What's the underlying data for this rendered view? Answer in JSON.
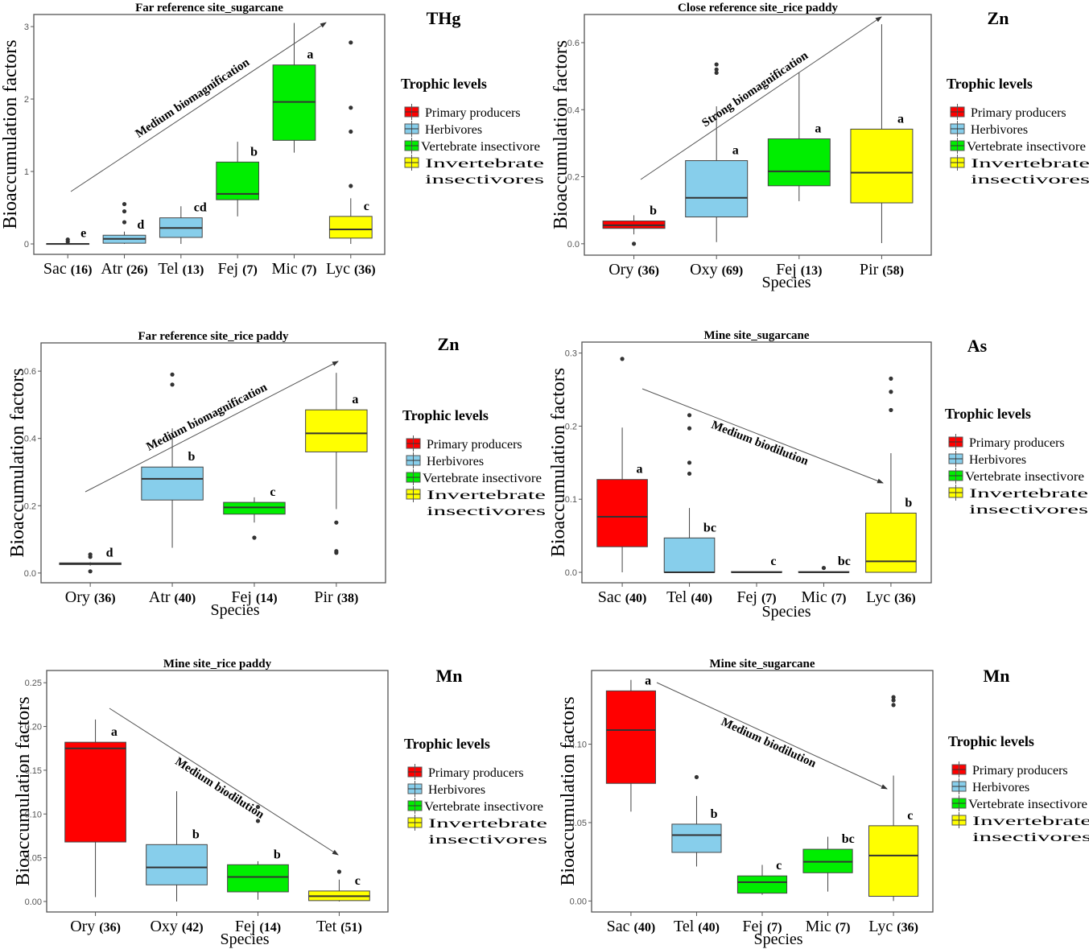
{
  "chart_data": [
    {
      "type": "box",
      "title": "Far reference site_sugarcane",
      "element": "THg",
      "ylabel": "Bioaccumulation factors",
      "xlabel": "",
      "ylim": [
        -0.144,
        3.167
      ],
      "yticks": [
        0,
        1,
        2,
        3
      ],
      "ytick_labels": [
        "0",
        "1",
        "2",
        "3"
      ],
      "trend": "Medium biomagnification",
      "trend_direction": "up",
      "boxes": [
        {
          "species": "Sac",
          "n": "(16)",
          "group": "Primary producers",
          "stats": [
            0,
            0,
            0,
            0.005,
            0.01
          ],
          "outliers": [
            0.03,
            0.06
          ],
          "letter": "e"
        },
        {
          "species": "Atr",
          "n": "(26)",
          "group": "Herbivores",
          "stats": [
            0,
            0.01,
            0.07,
            0.12,
            0.17
          ],
          "outliers": [
            0.3,
            0.45,
            0.55
          ],
          "letter": "d"
        },
        {
          "species": "Tel",
          "n": "(13)",
          "group": "Herbivores",
          "stats": [
            0,
            0.09,
            0.22,
            0.36,
            0.52
          ],
          "outliers": [],
          "letter": "cd"
        },
        {
          "species": "Fej",
          "n": "(7)",
          "group": "Vertebrate insectivore",
          "stats": [
            0.38,
            0.61,
            0.69,
            1.13,
            1.41
          ],
          "outliers": [],
          "letter": "b"
        },
        {
          "species": "Mic",
          "n": "(7)",
          "group": "Vertebrate insectivore",
          "stats": [
            1.26,
            1.43,
            1.96,
            2.47,
            3.05
          ],
          "outliers": [],
          "letter": "a"
        },
        {
          "species": "Lyc",
          "n": "(36)",
          "group": "Invertebrate insectivores",
          "stats": [
            0,
            0.08,
            0.2,
            0.38,
            0.63
          ],
          "outliers": [
            0.8,
            1.55,
            1.88,
            2.78
          ],
          "letter": "c"
        }
      ]
    },
    {
      "type": "box",
      "title": "Close reference site_rice paddy",
      "element": "Zn",
      "ylabel": "Bioaccumulation factors",
      "xlabel": "Species",
      "ylim": [
        -0.034,
        0.684
      ],
      "yticks": [
        0,
        0.2,
        0.4,
        0.6
      ],
      "ytick_labels": [
        "0.0",
        "0.2",
        "0.4",
        "0.6"
      ],
      "trend": "Strong biomagnification",
      "trend_direction": "up",
      "boxes": [
        {
          "species": "Ory",
          "n": "(36)",
          "group": "Primary producers",
          "stats": [
            0.028,
            0.046,
            0.055,
            0.068,
            0.085
          ],
          "outliers": [
            0
          ],
          "letter": "b"
        },
        {
          "species": "Oxy",
          "n": "(69)",
          "group": "Herbivores",
          "stats": [
            0.005,
            0.08,
            0.137,
            0.248,
            0.41
          ],
          "outliers": [
            0.51,
            0.52,
            0.535
          ],
          "letter": "a"
        },
        {
          "species": "Fej",
          "n": "(13)",
          "group": "Vertebrate insectivore",
          "stats": [
            0.127,
            0.173,
            0.216,
            0.313,
            0.51
          ],
          "outliers": [],
          "letter": "a"
        },
        {
          "species": "Pir",
          "n": "(58)",
          "group": "Invertebrate insectivores",
          "stats": [
            0.002,
            0.122,
            0.212,
            0.342,
            0.655
          ],
          "outliers": [],
          "letter": "a"
        }
      ]
    },
    {
      "type": "box",
      "title": "Far reference site_rice paddy",
      "element": "Zn",
      "ylabel": "Bioaccumulation factors",
      "xlabel": "Species",
      "ylim": [
        -0.029,
        0.684
      ],
      "yticks": [
        0,
        0.2,
        0.4,
        0.6
      ],
      "ytick_labels": [
        "0.0",
        "0.2",
        "0.4",
        "0.6"
      ],
      "trend": "Medium biomagnification",
      "trend_direction": "up",
      "boxes": [
        {
          "species": "Ory",
          "n": "(36)",
          "group": "Primary producers",
          "stats": [
            0.022,
            0.025,
            0.028,
            0.03,
            0.032
          ],
          "outliers": [
            0.005,
            0.048,
            0.055
          ],
          "letter": "d"
        },
        {
          "species": "Atr",
          "n": "(40)",
          "group": "Herbivores",
          "stats": [
            0.075,
            0.217,
            0.28,
            0.315,
            0.43
          ],
          "outliers": [
            0.56,
            0.59
          ],
          "letter": "b"
        },
        {
          "species": "Fej",
          "n": "(14)",
          "group": "Vertebrate insectivore",
          "stats": [
            0.15,
            0.175,
            0.195,
            0.21,
            0.225
          ],
          "outliers": [
            0.105
          ],
          "letter": "c"
        },
        {
          "species": "Pir",
          "n": "(38)",
          "group": "Invertebrate insectivores",
          "stats": [
            0.19,
            0.36,
            0.415,
            0.485,
            0.595
          ],
          "outliers": [
            0.06,
            0.065,
            0.15
          ],
          "letter": "a"
        }
      ]
    },
    {
      "type": "box",
      "title": "Mine site_sugarcane",
      "element": "As",
      "ylabel": "Bioaccumulation factors",
      "xlabel": "Species",
      "ylim": [
        -0.0143,
        0.315
      ],
      "yticks": [
        0,
        0.1,
        0.2,
        0.3
      ],
      "ytick_labels": [
        "0.0",
        "0.1",
        "0.2",
        "0.3"
      ],
      "trend": "Medium biodilution",
      "trend_direction": "down",
      "boxes": [
        {
          "species": "Sac",
          "n": "(40)",
          "group": "Primary producers",
          "stats": [
            0,
            0.035,
            0.076,
            0.127,
            0.198
          ],
          "outliers": [
            0.292
          ],
          "letter": "a"
        },
        {
          "species": "Tel",
          "n": "(40)",
          "group": "Herbivores",
          "stats": [
            0,
            0,
            0,
            0.047,
            0.088
          ],
          "outliers": [
            0.135,
            0.15,
            0.197,
            0.215
          ],
          "letter": "bc"
        },
        {
          "species": "Fej",
          "n": "(7)",
          "group": "Vertebrate insectivore",
          "stats": [
            0,
            0,
            0,
            0.001,
            0.001
          ],
          "outliers": [],
          "letter": "c"
        },
        {
          "species": "Mic",
          "n": "(7)",
          "group": "Vertebrate insectivore",
          "stats": [
            0,
            0,
            0,
            0.001,
            0.001
          ],
          "outliers": [
            0.006
          ],
          "letter": "bc"
        },
        {
          "species": "Lyc",
          "n": "(36)",
          "group": "Invertebrate insectivores",
          "stats": [
            0,
            0,
            0.015,
            0.081,
            0.163
          ],
          "outliers": [
            0.222,
            0.247,
            0.265
          ],
          "letter": "b"
        }
      ]
    },
    {
      "type": "box",
      "title": "Mine site_rice paddy",
      "element": "Mn",
      "ylabel": "Bioaccumulation factors",
      "xlabel": "Species",
      "ylim": [
        -0.012,
        0.264
      ],
      "yticks": [
        0,
        0.05,
        0.1,
        0.15,
        0.2,
        0.25
      ],
      "ytick_labels": [
        "0.00",
        "0.05",
        "0.10",
        "0.15",
        "0.20",
        "0.25"
      ],
      "trend": "Medium biodilution",
      "trend_direction": "down",
      "boxes": [
        {
          "species": "Ory",
          "n": "(36)",
          "group": "Primary producers",
          "stats": [
            0.005,
            0.068,
            0.175,
            0.182,
            0.208
          ],
          "outliers": [],
          "letter": "a"
        },
        {
          "species": "Oxy",
          "n": "(42)",
          "group": "Herbivores",
          "stats": [
            0,
            0.019,
            0.039,
            0.065,
            0.126
          ],
          "outliers": [],
          "letter": "b"
        },
        {
          "species": "Fej",
          "n": "(14)",
          "group": "Vertebrate insectivore",
          "stats": [
            0.002,
            0.011,
            0.028,
            0.042,
            0.046
          ],
          "outliers": [
            0.092,
            0.108
          ],
          "letter": "b"
        },
        {
          "species": "Tet",
          "n": "(51)",
          "group": "Invertebrate insectivores",
          "stats": [
            0,
            0.001,
            0.006,
            0.012,
            0.025
          ],
          "outliers": [
            0.034
          ],
          "letter": "c"
        }
      ]
    },
    {
      "type": "box",
      "title": "Mine site_sugarcane",
      "element": "Mn",
      "ylabel": "Bioaccumulation factors",
      "xlabel": "Species",
      "ylim": [
        -0.007,
        0.147
      ],
      "yticks": [
        0,
        0.05,
        0.1
      ],
      "ytick_labels": [
        "0.00",
        "0.05",
        "0.10"
      ],
      "trend": "Medium biodilution",
      "trend_direction": "down",
      "boxes": [
        {
          "species": "Sac",
          "n": "(40)",
          "group": "Primary producers",
          "stats": [
            0.057,
            0.075,
            0.109,
            0.134,
            0.141
          ],
          "outliers": [],
          "letter": "a"
        },
        {
          "species": "Tel",
          "n": "(40)",
          "group": "Herbivores",
          "stats": [
            0.022,
            0.031,
            0.042,
            0.049,
            0.067
          ],
          "outliers": [
            0.079
          ],
          "letter": "b"
        },
        {
          "species": "Fej",
          "n": "(7)",
          "group": "Vertebrate insectivore",
          "stats": [
            0.004,
            0.005,
            0.012,
            0.016,
            0.023
          ],
          "outliers": [],
          "letter": "c"
        },
        {
          "species": "Mic",
          "n": "(7)",
          "group": "Vertebrate insectivore",
          "stats": [
            0.006,
            0.018,
            0.025,
            0.033,
            0.041
          ],
          "outliers": [],
          "letter": "bc"
        },
        {
          "species": "Lyc",
          "n": "(36)",
          "group": "Invertebrate insectivores",
          "stats": [
            0,
            0.003,
            0.029,
            0.048,
            0.08
          ],
          "outliers": [
            0.125,
            0.128,
            0.13
          ],
          "letter": "c"
        }
      ]
    }
  ],
  "legend": {
    "title": "Trophic levels",
    "items": [
      {
        "label": "Primary producers",
        "lines": [
          "Primary producers"
        ],
        "color": "#FF0000"
      },
      {
        "label": "Herbivores",
        "lines": [
          "Herbivores"
        ],
        "color": "#87CEEB"
      },
      {
        "label": "Vertebrate insectivore",
        "lines": [
          "Vertebrate insectivore"
        ],
        "color": "#00EE00"
      },
      {
        "label": "Invertebrate insectivores",
        "lines": [
          "Invertebrate",
          "insectivores"
        ],
        "color": "#FFFF00"
      }
    ]
  }
}
